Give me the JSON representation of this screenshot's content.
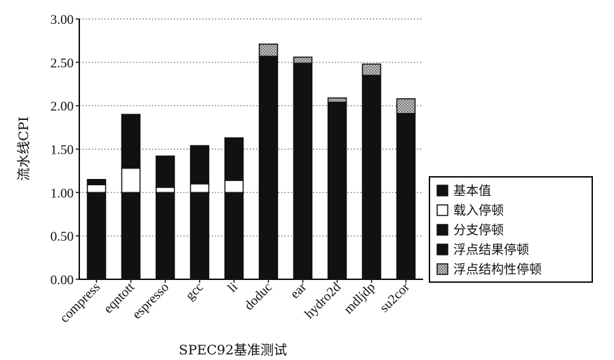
{
  "chart_data": {
    "type": "bar",
    "stacked": true,
    "xlabel": "SPEC92基准测试",
    "ylabel": "流水线CPI",
    "ylim": [
      0,
      3.0
    ],
    "y_ticks": [
      "0.00",
      "0.50",
      "1.00",
      "1.50",
      "2.00",
      "2.50",
      "3.00"
    ],
    "grid": "horizontal dotted",
    "legend_position": "right",
    "categories": [
      "compress",
      "eqntott",
      "espresso",
      "gcc",
      "li",
      "doduc",
      "ear",
      "hydro2d",
      "mdljdp",
      "su2cor"
    ],
    "series": [
      {
        "name": "基本值",
        "color": "#111111",
        "values": [
          1.0,
          1.0,
          1.0,
          1.0,
          1.0,
          1.0,
          1.0,
          1.0,
          1.0,
          1.0
        ]
      },
      {
        "name": "载入停顿",
        "color": "#ffffff",
        "values": [
          0.09,
          0.28,
          0.06,
          0.1,
          0.14,
          0.0,
          0.0,
          0.0,
          0.0,
          0.0
        ]
      },
      {
        "name": "分支停顿",
        "color": "#111111",
        "values": [
          0.06,
          0.62,
          0.36,
          0.44,
          0.49,
          0.0,
          0.0,
          0.0,
          0.0,
          0.0
        ]
      },
      {
        "name": "浮点结果停顿",
        "color": "#111111",
        "values": [
          0.0,
          0.0,
          0.0,
          0.0,
          0.0,
          1.57,
          1.49,
          1.04,
          1.35,
          0.91
        ]
      },
      {
        "name": "浮点结构性停顿",
        "color": "#8a8a8a",
        "values": [
          0.0,
          0.0,
          0.0,
          0.0,
          0.0,
          0.14,
          0.07,
          0.05,
          0.13,
          0.17
        ]
      }
    ]
  }
}
